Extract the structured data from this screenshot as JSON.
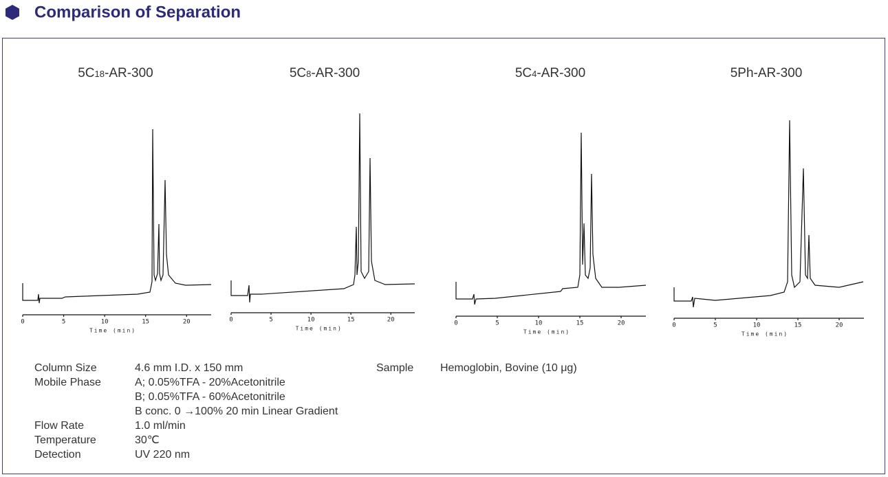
{
  "header": {
    "title": "Comparison of Separation"
  },
  "panels": [
    {
      "title": [
        "5C",
        "18",
        "-AR-300"
      ],
      "xlabel": "Time (min)",
      "xlim": [
        0,
        23
      ],
      "xticks": [
        0,
        5,
        10,
        15,
        20
      ]
    },
    {
      "title": [
        "5C",
        "8",
        "-AR-300"
      ],
      "xlabel": "Time (min)",
      "xlim": [
        0,
        23
      ],
      "xticks": [
        0,
        5,
        10,
        15,
        20
      ]
    },
    {
      "title": [
        "5C",
        "4",
        "-AR-300"
      ],
      "xlabel": "Time (min)",
      "xlim": [
        0,
        23
      ],
      "xticks": [
        0,
        5,
        10,
        15,
        20
      ]
    },
    {
      "title": [
        "5Ph-AR-300"
      ],
      "xlabel": "Time (min)",
      "xlim": [
        0,
        23
      ],
      "xticks": [
        0,
        5,
        10,
        15,
        20
      ]
    }
  ],
  "conditions": [
    {
      "label": "Column Size",
      "value": [
        "4.6 mm I.D. x 150 mm"
      ]
    },
    {
      "label": "Mobile Phase",
      "value": [
        "A; 0.05%TFA - 20%Acetonitrile",
        "B; 0.05%TFA - 60%Acetonitrile",
        "B conc. 0 →100% 20  min Linear Gradient"
      ]
    },
    {
      "label": "Flow Rate",
      "value": [
        "1.0 ml/min"
      ]
    },
    {
      "label": "Temperature",
      "value": [
        "30℃"
      ]
    },
    {
      "label": "Detection",
      "value": [
        "UV 220 nm"
      ]
    }
  ],
  "sample": {
    "label": "Sample",
    "value": "Hemoglobin, Bovine (10 μg)"
  }
}
